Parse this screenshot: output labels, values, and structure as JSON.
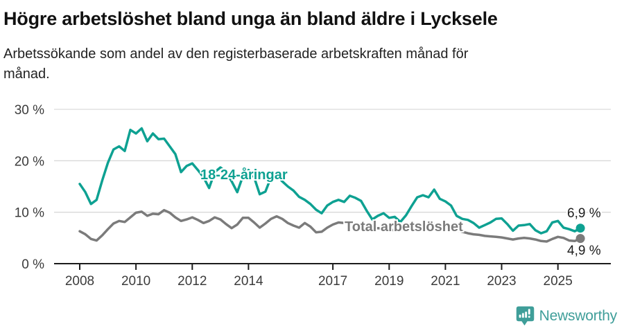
{
  "page": {
    "title": "Högre arbetslöshet bland unga än bland äldre i Lycksele",
    "subtitle": "Arbetssökande som andel av den registerbaserade arbetskraften månad för månad."
  },
  "chart_data": {
    "type": "line",
    "title": "Högre arbetslöshet bland unga än bland äldre i Lycksele",
    "subtitle": "Arbetssökande som andel av den registerbaserade arbetskraften månad för månad.",
    "x_unit": "year (monthly data)",
    "x_start": 2008.0,
    "x_step": 0.2,
    "xlim": [
      2007.1,
      2026.9
    ],
    "ylim": [
      0,
      31
    ],
    "grid": "horizontal-only",
    "legend_position": "inline-labels",
    "x_ticks": [
      2008,
      2010,
      2012,
      2014,
      2017,
      2019,
      2021,
      2023,
      2025
    ],
    "y_ticks": [
      {
        "value": 0,
        "label": "0 %"
      },
      {
        "value": 10,
        "label": "10 %"
      },
      {
        "value": 20,
        "label": "20 %"
      },
      {
        "value": 30,
        "label": "30 %"
      }
    ],
    "series": [
      {
        "id": "youth",
        "name": "18-24-åringar",
        "color": "#0ea192",
        "end_label": "6,9 %",
        "end_value": 6.9,
        "values": [
          15.5,
          13.9,
          11.6,
          12.4,
          16.2,
          19.6,
          22.2,
          22.8,
          21.9,
          26.0,
          25.3,
          26.3,
          23.8,
          25.3,
          24.2,
          24.3,
          22.8,
          21.3,
          17.8,
          19.0,
          19.5,
          18.2,
          16.8,
          14.7,
          17.8,
          18.7,
          17.8,
          16.0,
          13.9,
          17.0,
          18.2,
          16.8,
          13.5,
          14.0,
          16.8,
          17.2,
          16.0,
          15.0,
          14.2,
          13.0,
          12.4,
          11.6,
          10.5,
          9.8,
          11.3,
          12.0,
          12.4,
          12.0,
          13.2,
          12.8,
          12.2,
          10.3,
          8.6,
          9.3,
          9.8,
          8.9,
          9.1,
          8.1,
          9.4,
          11.2,
          12.9,
          13.3,
          12.9,
          14.4,
          12.6,
          12.1,
          11.3,
          9.3,
          8.7,
          8.5,
          7.9,
          7.0,
          7.5,
          8.0,
          8.7,
          8.8,
          7.7,
          6.4,
          7.4,
          7.5,
          7.7,
          6.5,
          5.9,
          6.3,
          8.0,
          8.3,
          7.0,
          6.7,
          6.3,
          6.9
        ]
      },
      {
        "id": "total",
        "name": "Total arbetslöshet",
        "color": "#7b7b7b",
        "end_label": "4,9 %",
        "end_value": 4.9,
        "values": [
          6.3,
          5.7,
          4.8,
          4.5,
          5.5,
          6.7,
          7.8,
          8.3,
          8.1,
          9.0,
          9.9,
          10.1,
          9.3,
          9.7,
          9.6,
          10.4,
          9.9,
          9.0,
          8.3,
          8.6,
          9.0,
          8.5,
          7.9,
          8.3,
          9.0,
          8.6,
          7.7,
          6.9,
          7.6,
          8.9,
          8.9,
          8.0,
          7.0,
          7.8,
          8.7,
          9.2,
          8.7,
          7.9,
          7.4,
          7.0,
          7.9,
          7.2,
          6.1,
          6.2,
          7.0,
          7.6,
          8.0,
          7.9,
          7.8,
          7.6,
          7.2,
          6.9,
          6.7,
          6.9,
          6.8,
          6.6,
          6.5,
          6.4,
          6.6,
          6.9,
          7.2,
          7.6,
          7.8,
          7.7,
          7.4,
          7.2,
          6.9,
          6.5,
          6.2,
          5.9,
          5.7,
          5.6,
          5.4,
          5.3,
          5.2,
          5.1,
          4.9,
          4.7,
          4.9,
          5.0,
          4.9,
          4.7,
          4.4,
          4.3,
          4.8,
          5.2,
          5.0,
          4.5,
          4.4,
          4.9
        ]
      }
    ]
  },
  "annotations": {
    "youth_series_label": "18-24-åringar",
    "total_series_label": "Total arbetslöshet",
    "youth_end_label": "6,9 %",
    "total_end_label": "4,9 %"
  },
  "footer": {
    "brand_name": "Newsworthy"
  },
  "colors": {
    "youth_line": "#0ea192",
    "total_line": "#7b7b7b",
    "gridline": "#d9d9d9",
    "axis": "#1c1c1c",
    "brand": "#3f9e99"
  }
}
